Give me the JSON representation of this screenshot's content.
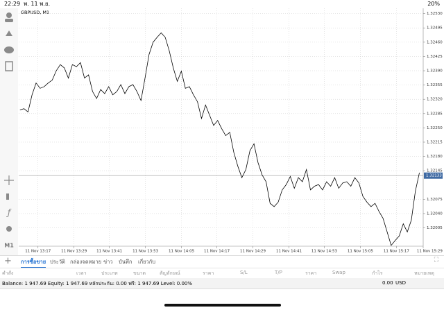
{
  "status_bar": {
    "time": "22:29",
    "date": "พ. 11 พ.ย.",
    "battery": "20%"
  },
  "chart_data": {
    "type": "line",
    "title": "GBPUSD, M1",
    "color": "#000000",
    "grid": true,
    "values": [
      1.32294,
      1.32297,
      1.32289,
      1.32331,
      1.3236,
      1.32347,
      1.32351,
      1.3236,
      1.32367,
      1.3239,
      1.32405,
      1.32397,
      1.32372,
      1.32405,
      1.324,
      1.3241,
      1.32372,
      1.3238,
      1.32339,
      1.32322,
      1.32344,
      1.32334,
      1.32351,
      1.32331,
      1.32339,
      1.32356,
      1.32334,
      1.32351,
      1.32356,
      1.32339,
      1.32317,
      1.32372,
      1.3243,
      1.3246,
      1.32472,
      1.32483,
      1.32472,
      1.32439,
      1.32397,
      1.32364,
      1.32389,
      1.32347,
      1.32351,
      1.32331,
      1.32314,
      1.32273,
      1.32306,
      1.32281,
      1.32256,
      1.32268,
      1.32248,
      1.32231,
      1.32239,
      1.3219,
      1.32156,
      1.32128,
      1.32148,
      1.32194,
      1.32211,
      1.32165,
      1.32135,
      1.32118,
      1.32065,
      1.32057,
      1.32068,
      1.32098,
      1.32111,
      1.32131,
      1.32102,
      1.32128,
      1.32118,
      1.32148,
      1.32098,
      1.32107,
      1.32111,
      1.32098,
      1.32118,
      1.32107,
      1.32128,
      1.32102,
      1.32115,
      1.32118,
      1.32107,
      1.32128,
      1.32115,
      1.32082,
      1.32068,
      1.32057,
      1.32065,
      1.32045,
      1.32028,
      1.31995,
      1.31962,
      1.31974,
      1.31985,
      1.32015,
      1.31995,
      1.32024,
      1.32095,
      1.3214
    ],
    "xlim": [
      -0.3,
      102
    ],
    "xticks": [
      {
        "value": 4.47,
        "label": "11 Nov 13:17"
      },
      {
        "value": 13.4,
        "label": "11 Nov 13:29"
      },
      {
        "value": 22.16,
        "label": "11 Nov 13:41"
      },
      {
        "value": 31.1,
        "label": "11 Nov 13:53"
      },
      {
        "value": 40.03,
        "label": "11 Nov 14:05"
      },
      {
        "value": 48.8,
        "label": "11 Nov 14:17"
      },
      {
        "value": 57.73,
        "label": "11 Nov 14:29"
      },
      {
        "value": 66.67,
        "label": "11 Nov 14:41"
      },
      {
        "value": 75.43,
        "label": "11 Nov 14:53"
      },
      {
        "value": 84.36,
        "label": "11 Nov 15:05"
      },
      {
        "value": 93.3,
        "label": "11 Nov 15:17"
      },
      {
        "value": 101.55,
        "label": "11 Nov 15:29"
      }
    ],
    "ylim": [
      1.3196,
      1.32543
    ],
    "yticks": [
      {
        "value": 1.3253,
        "label": "1.32530"
      },
      1.32495,
      {
        "value": 1.3246,
        "label": "1.32460"
      },
      1.32425,
      {
        "value": 1.3239,
        "label": "1.32390"
      },
      1.32355,
      {
        "value": 1.3232,
        "label": "1.32320"
      },
      1.32285,
      {
        "value": 1.3225,
        "label": "1.32250"
      },
      1.32215,
      {
        "value": 1.3218,
        "label": "1.32180"
      },
      1.32145,
      1.32075,
      {
        "value": 1.3204,
        "label": "1.32040"
      },
      1.32005
    ],
    "current_price": 1.32133,
    "timeframe": "M1"
  },
  "tabs": [
    "การซื้อขาย",
    "ประวัติ",
    "กล่องจดหมาย",
    "ข่าว",
    "บันทึก",
    "เกี่ยวกับ"
  ],
  "table_header": [
    "คำสั่ง",
    "เวลา",
    "ประเภท",
    "ขนาด",
    "สัญลักษณ์",
    "ราคา",
    "S/L",
    "T/P",
    "ราคา",
    "Swap",
    "กำไร",
    "หมายเหตุ"
  ],
  "footer": {
    "account": "Balance: 1 947.69 Equity: 1 947.69 หลักประกัน: 0.00 ฟรี: 1 947.69 Level: 0.00%",
    "profit": "0.00",
    "currency": "USD"
  }
}
